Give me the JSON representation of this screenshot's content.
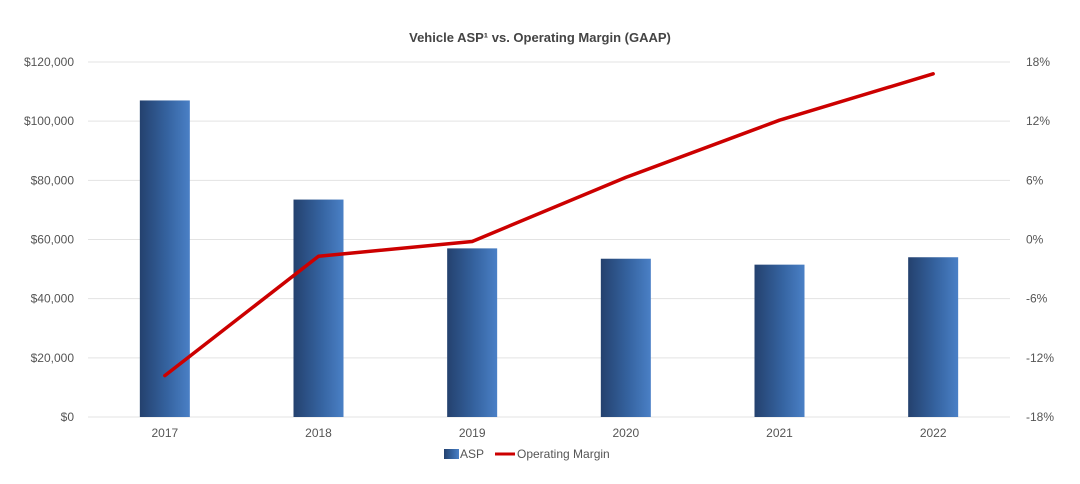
{
  "chart_data": {
    "type": "bar",
    "title": "Vehicle ASP¹ vs. Operating Margin (GAAP)",
    "categories": [
      "2017",
      "2018",
      "2019",
      "2020",
      "2021",
      "2022"
    ],
    "series": [
      {
        "name": "ASP",
        "type": "bar",
        "axis": "left",
        "color": "#3a6aa8",
        "values": [
          107000,
          73500,
          57000,
          53500,
          51500,
          54000
        ]
      },
      {
        "name": "Operating Margin",
        "type": "line",
        "axis": "right",
        "color": "#cc0000",
        "values": [
          -13.8,
          -1.7,
          -0.2,
          6.3,
          12.1,
          16.8
        ]
      }
    ],
    "y_left": {
      "min": 0,
      "max": 120000,
      "ticks": [
        "$0",
        "$20,000",
        "$40,000",
        "$60,000",
        "$80,000",
        "$100,000",
        "$120,000"
      ],
      "tick_values": [
        0,
        20000,
        40000,
        60000,
        80000,
        100000,
        120000
      ]
    },
    "y_right": {
      "min": -18,
      "max": 18,
      "ticks": [
        "-18%",
        "-12%",
        "-6%",
        "0%",
        "6%",
        "12%",
        "18%"
      ],
      "tick_values": [
        -18,
        -12,
        -6,
        0,
        6,
        12,
        18
      ]
    },
    "gridlines": true,
    "legend": {
      "position": "bottom",
      "items": [
        "ASP",
        "Operating Margin"
      ]
    }
  }
}
